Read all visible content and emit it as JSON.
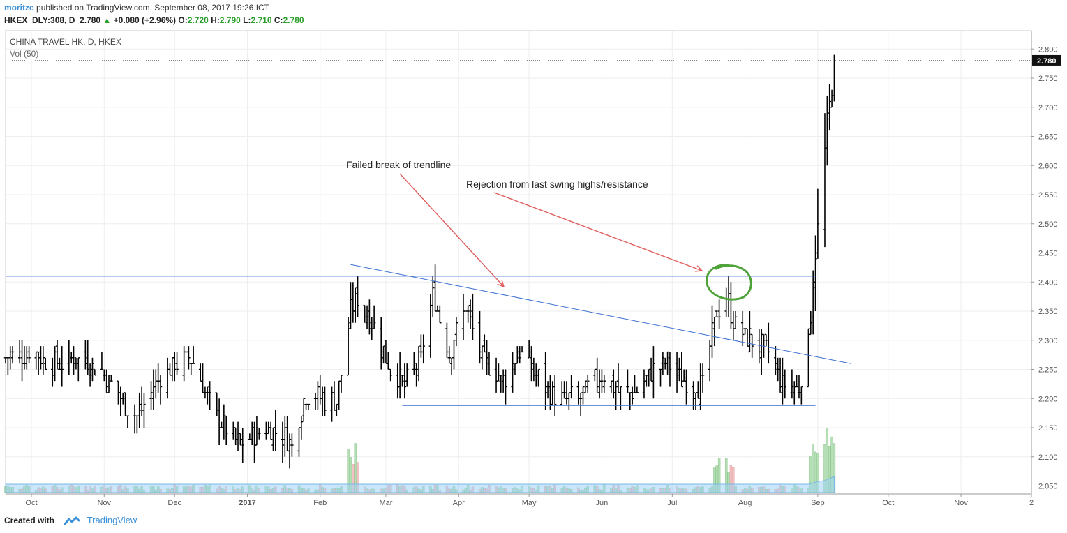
{
  "header": {
    "author": "moritzc",
    "published": "published on TradingView.com, September 08, 2017 19:26 ICT",
    "symbol_line": "HKEX_DLY:308, D",
    "last": "2.780",
    "change": "+0.080 (+2.96%)",
    "o_label": "O:",
    "o": "2.720",
    "h_label": "H:",
    "h": "2.790",
    "l_label": "L:",
    "l": "2.710",
    "c_label": "C:",
    "c": "2.780"
  },
  "footer": {
    "created_with": "Created with",
    "brand": "TradingView"
  },
  "colors": {
    "bar": "#000000",
    "trendline": "#3b6fd1",
    "arrow": "#e05d5d",
    "circle": "#4fa33a",
    "volume_up": "#b7dfb7",
    "volume_down": "#f2c4c4",
    "volume_ma": "#9fd2f5",
    "axis_text": "#555555"
  },
  "chart_data": {
    "type": "ohlc",
    "title": "CHINA TRAVEL HK, D, HKEX",
    "volume_label": "Vol (50)",
    "last_price_label": "2.780",
    "y_ticks": [
      "2.800",
      "2.750",
      "2.700",
      "2.650",
      "2.600",
      "2.550",
      "2.500",
      "2.450",
      "2.400",
      "2.350",
      "2.300",
      "2.250",
      "2.200",
      "2.150",
      "2.100",
      "2.050"
    ],
    "ylim": [
      2.05,
      2.8
    ],
    "x_ticks": [
      {
        "label": "Oct",
        "date": "2016-10-01"
      },
      {
        "label": "Nov",
        "date": "2016-11-01"
      },
      {
        "label": "Dec",
        "date": "2016-12-01"
      },
      {
        "label": "2017",
        "date": "2017-01-01"
      },
      {
        "label": "Feb",
        "date": "2017-02-01"
      },
      {
        "label": "Mar",
        "date": "2017-03-01"
      },
      {
        "label": "Apr",
        "date": "2017-04-01"
      },
      {
        "label": "May",
        "date": "2017-05-01"
      },
      {
        "label": "Jun",
        "date": "2017-06-01"
      },
      {
        "label": "Jul",
        "date": "2017-07-01"
      },
      {
        "label": "Aug",
        "date": "2017-08-01"
      },
      {
        "label": "Sep",
        "date": "2017-09-01"
      },
      {
        "label": "Oct",
        "date": "2017-10-01"
      },
      {
        "label": "Nov",
        "date": "2017-11-01"
      },
      {
        "label": "2",
        "date": "2017-12-01"
      }
    ],
    "xlim": [
      "2016-09-20",
      "2017-12-01"
    ],
    "price_path": [
      [
        "2016-09-20",
        2.27
      ],
      [
        "2016-10-01",
        2.28
      ],
      [
        "2016-10-10",
        2.26
      ],
      [
        "2016-10-20",
        2.27
      ],
      [
        "2016-10-31",
        2.25
      ],
      [
        "2016-11-08",
        2.2
      ],
      [
        "2016-11-15",
        2.17
      ],
      [
        "2016-11-22",
        2.22
      ],
      [
        "2016-12-01",
        2.26
      ],
      [
        "2016-12-08",
        2.27
      ],
      [
        "2016-12-15",
        2.2
      ],
      [
        "2016-12-22",
        2.15
      ],
      [
        "2016-12-29",
        2.12
      ],
      [
        "2017-01-05",
        2.14
      ],
      [
        "2017-01-12",
        2.15
      ],
      [
        "2017-01-20",
        2.12
      ],
      [
        "2017-01-26",
        2.21
      ],
      [
        "2017-02-03",
        2.2
      ],
      [
        "2017-02-08",
        2.19
      ],
      [
        "2017-02-14",
        2.35
      ],
      [
        "2017-02-17",
        2.37
      ],
      [
        "2017-02-23",
        2.33
      ],
      [
        "2017-03-02",
        2.26
      ],
      [
        "2017-03-09",
        2.22
      ],
      [
        "2017-03-16",
        2.27
      ],
      [
        "2017-03-21",
        2.38
      ],
      [
        "2017-03-28",
        2.28
      ],
      [
        "2017-04-04",
        2.36
      ],
      [
        "2017-04-11",
        2.27
      ],
      [
        "2017-04-20",
        2.23
      ],
      [
        "2017-04-27",
        2.28
      ],
      [
        "2017-05-04",
        2.24
      ],
      [
        "2017-05-12",
        2.2
      ],
      [
        "2017-05-22",
        2.2
      ],
      [
        "2017-06-01",
        2.24
      ],
      [
        "2017-06-09",
        2.21
      ],
      [
        "2017-06-16",
        2.21
      ],
      [
        "2017-06-23",
        2.25
      ],
      [
        "2017-06-29",
        2.26
      ],
      [
        "2017-07-06",
        2.23
      ],
      [
        "2017-07-14",
        2.22
      ],
      [
        "2017-07-20",
        2.35
      ],
      [
        "2017-07-24",
        2.38
      ],
      [
        "2017-07-28",
        2.32
      ],
      [
        "2017-08-04",
        2.3
      ],
      [
        "2017-08-11",
        2.28
      ],
      [
        "2017-08-17",
        2.22
      ],
      [
        "2017-08-24",
        2.22
      ],
      [
        "2017-08-28",
        2.3
      ],
      [
        "2017-08-31",
        2.45
      ],
      [
        "2017-09-04",
        2.62
      ],
      [
        "2017-09-06",
        2.7
      ],
      [
        "2017-09-08",
        2.78
      ]
    ],
    "annotations": [
      {
        "text": "Failed break of trendline"
      },
      {
        "text": "Rejection from last swing highs/resistance"
      }
    ],
    "lines": {
      "resistance": {
        "y": 2.41,
        "from": "2016-09-20",
        "to": "2017-08-31"
      },
      "support": {
        "y": 2.188,
        "from": "2017-03-08",
        "to": "2017-08-31"
      },
      "trendline": {
        "from": [
          "2017-02-14",
          2.43
        ],
        "to": [
          "2017-09-15",
          2.26
        ]
      }
    },
    "grid": true
  }
}
